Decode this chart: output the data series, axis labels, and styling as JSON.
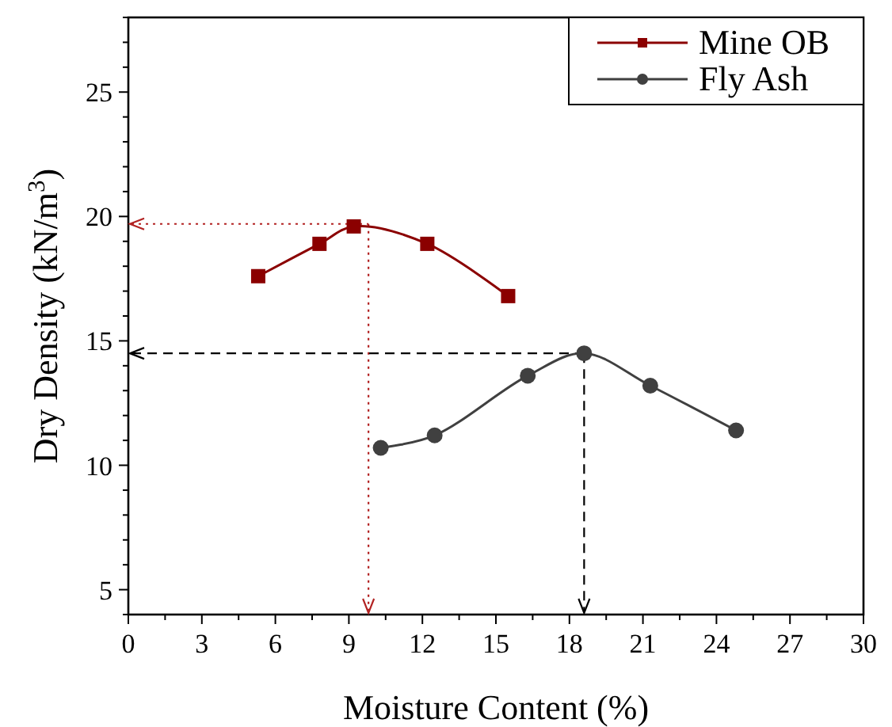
{
  "chart_data": {
    "type": "line",
    "xlabel": "Moisture Content (%)",
    "ylabel": "Dry Density (kN/m$^{3}$)",
    "xlim": [
      0,
      30
    ],
    "ylim": [
      4,
      28
    ],
    "xticks": [
      0,
      {
        "value": 1.5,
        "label": null
      },
      3,
      {
        "value": 4.5,
        "label": null
      },
      6,
      {
        "value": 7.5,
        "label": null
      },
      9,
      {
        "value": 10.5,
        "label": null
      },
      12,
      {
        "value": 13.5,
        "label": null
      },
      15,
      {
        "value": 16.5,
        "label": null
      },
      18,
      {
        "value": 19.5,
        "label": null
      },
      21,
      {
        "value": 22.5,
        "label": null
      },
      24,
      {
        "value": 25.5,
        "label": null
      },
      27,
      {
        "value": 28.5,
        "label": null
      },
      30
    ],
    "yticks": [
      {
        "value": 4,
        "label": null
      },
      5,
      {
        "value": 6,
        "label": null
      },
      {
        "value": 7,
        "label": null
      },
      {
        "value": 8,
        "label": null
      },
      {
        "value": 9,
        "label": null
      },
      10,
      {
        "value": 11,
        "label": null
      },
      {
        "value": 12,
        "label": null
      },
      {
        "value": 13,
        "label": null
      },
      {
        "value": 14,
        "label": null
      },
      15,
      {
        "value": 16,
        "label": null
      },
      {
        "value": 17,
        "label": null
      },
      {
        "value": 18,
        "label": null
      },
      {
        "value": 19,
        "label": null
      },
      20,
      {
        "value": 21,
        "label": null
      },
      {
        "value": 22,
        "label": null
      },
      {
        "value": 23,
        "label": null
      },
      {
        "value": 24,
        "label": null
      },
      25,
      {
        "value": 26,
        "label": null
      },
      {
        "value": 27,
        "label": null
      },
      {
        "value": 28,
        "label": null
      }
    ],
    "series": [
      {
        "name": "Mine OB",
        "color": "#8b0000",
        "marker": "square",
        "x": [
          5.3,
          7.8,
          9.2,
          12.2,
          15.5
        ],
        "values": [
          17.6,
          18.9,
          19.6,
          18.9,
          16.8
        ]
      },
      {
        "name": "Fly Ash",
        "color": "#404040",
        "marker": "circle",
        "x": [
          10.3,
          12.5,
          16.3,
          18.6,
          21.3,
          24.8
        ],
        "values": [
          10.7,
          11.2,
          13.6,
          14.5,
          13.2,
          11.4
        ]
      }
    ],
    "ref_lines": [
      {
        "axis": "x",
        "value": 9.8,
        "color": "#b22222",
        "line_style": "dotted"
      },
      {
        "axis": "y",
        "value": 19.7,
        "color": "#b22222",
        "line_style": "dotted"
      },
      {
        "axis": "x",
        "value": 18.6,
        "color": "#000000",
        "line_style": "dashed"
      },
      {
        "axis": "y",
        "value": 14.5,
        "color": "#000000",
        "line_style": "dashed"
      }
    ],
    "legend": "top right",
    "grid": false
  }
}
